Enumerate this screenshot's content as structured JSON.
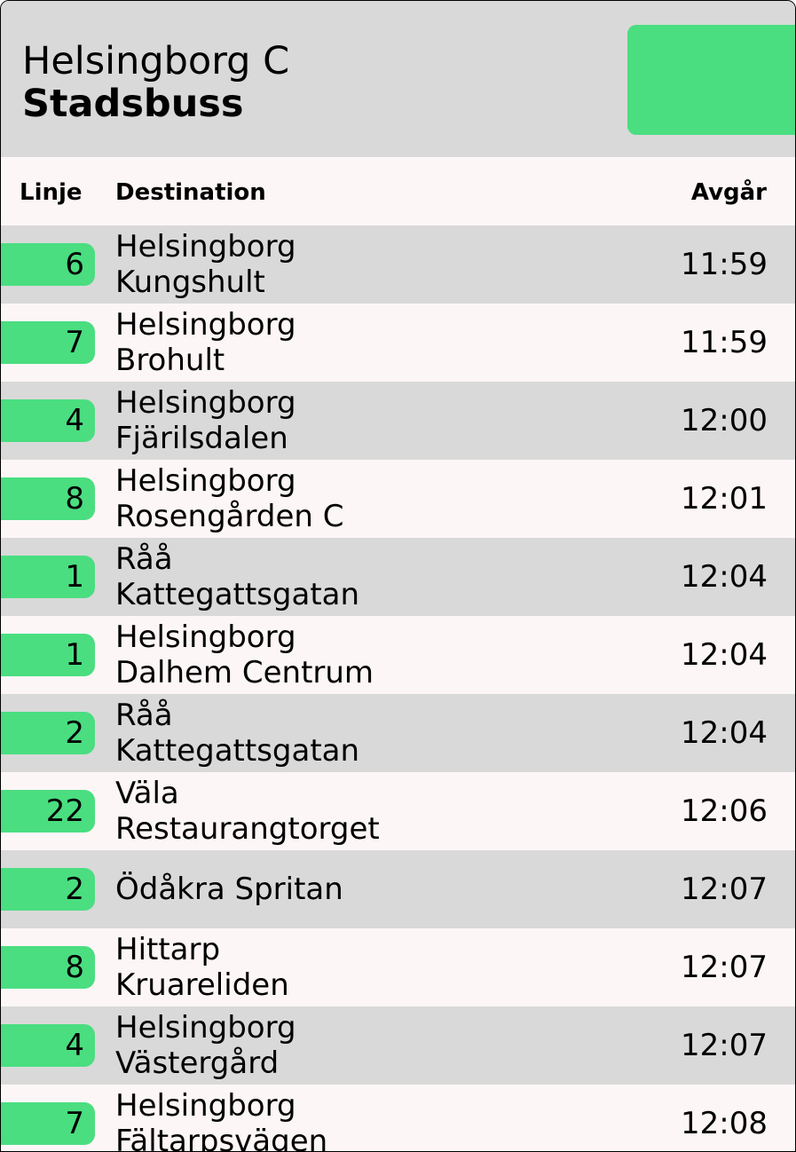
{
  "header": {
    "stop_name": "Helsingborg C",
    "service_type": "Stadsbuss",
    "accent_color": "#4ade80",
    "header_bg": "#d9d9d9"
  },
  "columns": {
    "line": "Linje",
    "destination": "Destination",
    "departs": "Avgår"
  },
  "departures": [
    {
      "line": "6",
      "dest1": "Helsingborg",
      "dest2": "Kungshult",
      "time": "11:59"
    },
    {
      "line": "7",
      "dest1": "Helsingborg",
      "dest2": "Brohult",
      "time": "11:59"
    },
    {
      "line": "4",
      "dest1": "Helsingborg",
      "dest2": "Fjärilsdalen",
      "time": "12:00"
    },
    {
      "line": "8",
      "dest1": "Helsingborg",
      "dest2": "Rosengården C",
      "time": "12:01"
    },
    {
      "line": "1",
      "dest1": "Råå",
      "dest2": "Kattegattsgatan",
      "time": "12:04"
    },
    {
      "line": "1",
      "dest1": "Helsingborg",
      "dest2": "Dalhem Centrum",
      "time": "12:04"
    },
    {
      "line": "2",
      "dest1": "Råå",
      "dest2": "Kattegattsgatan",
      "time": "12:04"
    },
    {
      "line": "22",
      "dest1": "Väla",
      "dest2": "Restaurangtorget",
      "time": "12:06"
    },
    {
      "line": "2",
      "dest1": "Ödåkra Spritan",
      "dest2": "",
      "time": "12:07"
    },
    {
      "line": "8",
      "dest1": "Hittarp",
      "dest2": "Kruareliden",
      "time": "12:07"
    },
    {
      "line": "4",
      "dest1": "Helsingborg",
      "dest2": "Västergård",
      "time": "12:07"
    },
    {
      "line": "7",
      "dest1": "Helsingborg",
      "dest2": "Fältarpsvägen",
      "time": "12:08"
    }
  ]
}
